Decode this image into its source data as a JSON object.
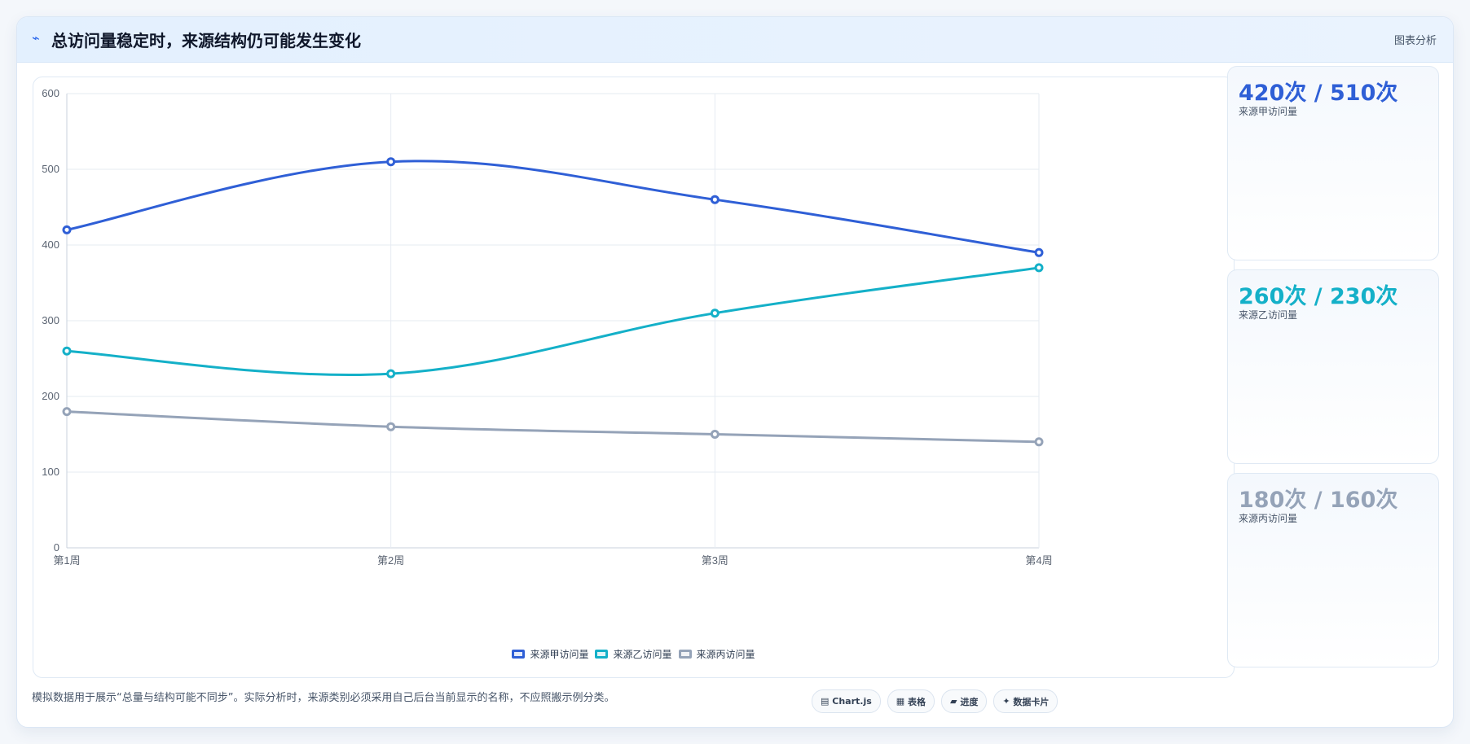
{
  "header": {
    "icon": "chart-trend-icon",
    "title": "总访问量稳定时，来源结构仍可能发生变化",
    "tag": "图表分析"
  },
  "chart_data": {
    "type": "line",
    "categories": [
      "第1周",
      "第2周",
      "第3周",
      "第4周"
    ],
    "ylim": [
      0,
      600
    ],
    "yticks": [
      0,
      100,
      200,
      300,
      400,
      500,
      600
    ],
    "grid": true,
    "legend_position": "bottom",
    "series": [
      {
        "name": "来源甲访问量",
        "color": "#2f5fd6",
        "values": [
          420,
          510,
          460,
          390
        ]
      },
      {
        "name": "来源乙访问量",
        "color": "#14b0c8",
        "values": [
          260,
          230,
          310,
          370
        ]
      },
      {
        "name": "来源丙访问量",
        "color": "#95a3b8",
        "values": [
          180,
          160,
          150,
          140
        ]
      }
    ]
  },
  "kpis": [
    {
      "value": "420次 / 510次",
      "label": "来源甲访问量",
      "color": "#2f5fd6"
    },
    {
      "value": "260次 / 230次",
      "label": "来源乙访问量",
      "color": "#14b0c8"
    },
    {
      "value": "180次 / 160次",
      "label": "来源丙访问量",
      "color": "#95a3b8"
    }
  ],
  "footer": {
    "note": "模拟数据用于展示“总量与结构可能不同步”。实际分析时，来源类别必须采用自己后台当前显示的名称，不应照搬示例分类。",
    "pills": [
      {
        "icon": "chart-icon",
        "glyph": "▤",
        "label": "Chart.js"
      },
      {
        "icon": "table-icon",
        "glyph": "▦",
        "label": "表格"
      },
      {
        "icon": "progress-icon",
        "glyph": "▰",
        "label": "进度"
      },
      {
        "icon": "card-icon",
        "glyph": "✦",
        "label": "数据卡片"
      }
    ]
  }
}
